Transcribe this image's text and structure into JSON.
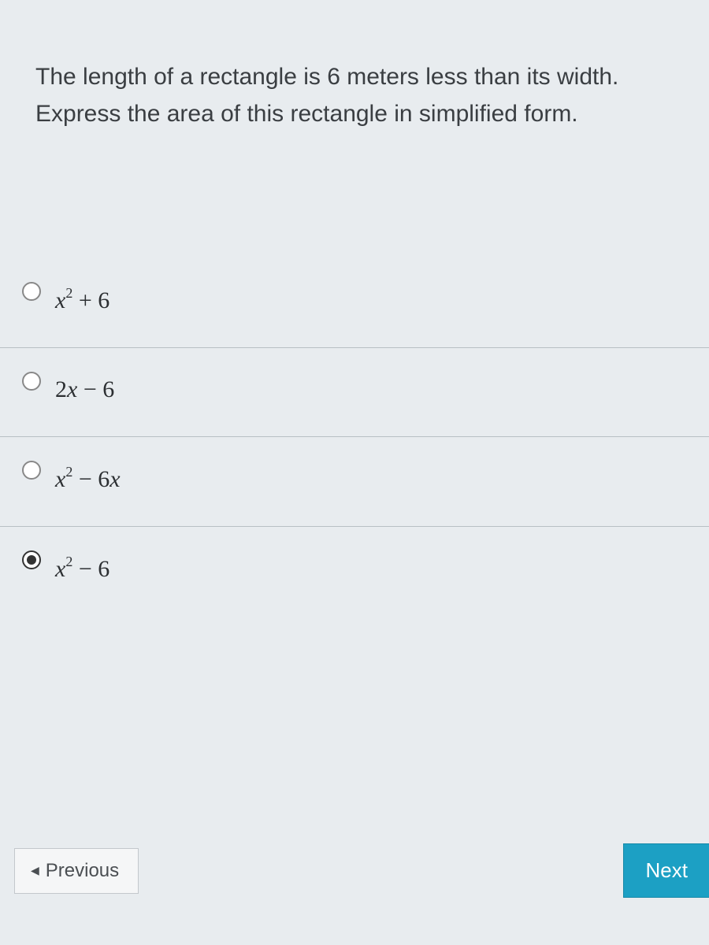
{
  "question": {
    "line1": "The length of a rectangle is 6 meters less than its width.",
    "line2": "Express the area of this rectangle in simplified form."
  },
  "options": [
    {
      "math_html": "<span class='var'>x</span><sup>2</sup> + 6",
      "selected": false
    },
    {
      "math_html": "2<span class='var'>x</span> − 6",
      "selected": false
    },
    {
      "math_html": "<span class='var'>x</span><sup>2</sup> − 6<span class='var'>x</span>",
      "selected": false
    },
    {
      "math_html": "<span class='var'>x</span><sup>2</sup> − 6",
      "selected": true
    }
  ],
  "nav": {
    "previous_label": "Previous",
    "next_label": "Next"
  },
  "colors": {
    "background": "#e8ecef",
    "text": "#3a3e42",
    "divider": "#b8bfc4",
    "next_button_bg": "#1ca0c4",
    "next_button_text": "#ffffff",
    "prev_button_bg": "#f5f6f7",
    "prev_button_border": "#c3c8cc"
  },
  "typography": {
    "question_fontsize": 30,
    "option_fontsize": 30,
    "button_fontsize": 24,
    "question_font": "sans-serif",
    "option_font": "serif"
  }
}
